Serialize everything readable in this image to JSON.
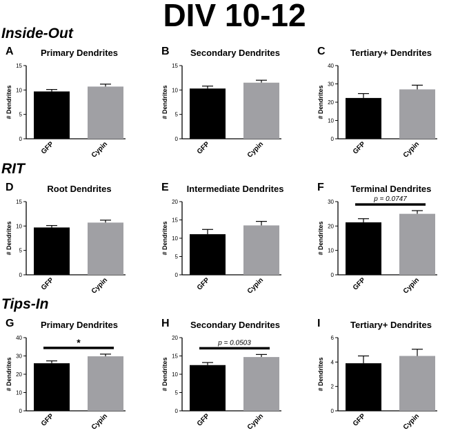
{
  "title": "DIV 10-12",
  "sections": [
    "Inside-Out",
    "RIT",
    "Tips-In"
  ],
  "colors": {
    "gfp": "#000000",
    "cypin": "#a0a0a4",
    "axis": "#000000"
  },
  "chart_data": [
    {
      "letter": "A",
      "type": "bar",
      "title": "Primary Dendrites",
      "ylabel": "# Dendrites",
      "categories": [
        "GFP",
        "Cypin"
      ],
      "values": [
        9.7,
        10.7
      ],
      "errors": [
        0.4,
        0.5
      ],
      "ylim": [
        0,
        15
      ],
      "yticks": [
        0,
        5,
        10,
        15
      ]
    },
    {
      "letter": "B",
      "type": "bar",
      "title": "Secondary Dendrites",
      "ylabel": "# Dendrites",
      "categories": [
        "GFP",
        "Cypin"
      ],
      "values": [
        10.3,
        11.5
      ],
      "errors": [
        0.5,
        0.5
      ],
      "ylim": [
        0,
        15
      ],
      "yticks": [
        0,
        5,
        10,
        15
      ]
    },
    {
      "letter": "C",
      "type": "bar",
      "title": "Tertiary+ Dendrites",
      "ylabel": "# Dendrites",
      "categories": [
        "GFP",
        "Cypin"
      ],
      "values": [
        22.3,
        27.0
      ],
      "errors": [
        2.4,
        2.3
      ],
      "ylim": [
        0,
        40
      ],
      "yticks": [
        0,
        10,
        20,
        30,
        40
      ]
    },
    {
      "letter": "D",
      "type": "bar",
      "title": "Root Dendrites",
      "ylabel": "# Dendrites",
      "categories": [
        "GFP",
        "Cypin"
      ],
      "values": [
        9.7,
        10.7
      ],
      "errors": [
        0.4,
        0.5
      ],
      "ylim": [
        0,
        15
      ],
      "yticks": [
        0,
        5,
        10,
        15
      ]
    },
    {
      "letter": "E",
      "type": "bar",
      "title": "Intermediate Dendrites",
      "ylabel": "# Dendrites",
      "categories": [
        "GFP",
        "Cypin"
      ],
      "values": [
        11.1,
        13.5
      ],
      "errors": [
        1.3,
        1.1
      ],
      "ylim": [
        0,
        20
      ],
      "yticks": [
        0,
        5,
        10,
        15,
        20
      ]
    },
    {
      "letter": "F",
      "type": "bar",
      "title": "Terminal Dendrites",
      "ylabel": "# Dendrites",
      "categories": [
        "GFP",
        "Cypin"
      ],
      "values": [
        21.5,
        25.0
      ],
      "errors": [
        1.5,
        1.3
      ],
      "ylim": [
        0,
        30
      ],
      "yticks": [
        0,
        10,
        20,
        30
      ],
      "annotation": "p = 0.0747"
    },
    {
      "letter": "G",
      "type": "bar",
      "title": "Primary Dendrites",
      "ylabel": "# Dendrites",
      "categories": [
        "GFP",
        "Cypin"
      ],
      "values": [
        26.0,
        29.8
      ],
      "errors": [
        1.3,
        1.2
      ],
      "ylim": [
        0,
        40
      ],
      "yticks": [
        0,
        10,
        20,
        30,
        40
      ],
      "annotation": "*"
    },
    {
      "letter": "H",
      "type": "bar",
      "title": "Secondary Dendrites",
      "ylabel": "# Dendrites",
      "categories": [
        "GFP",
        "Cypin"
      ],
      "values": [
        12.5,
        14.7
      ],
      "errors": [
        0.7,
        0.7
      ],
      "ylim": [
        0,
        20
      ],
      "yticks": [
        0,
        5,
        10,
        15,
        20
      ],
      "annotation": "p = 0.0503"
    },
    {
      "letter": "I",
      "type": "bar",
      "title": "Tertiary+ Dendrites",
      "ylabel": "# Dendrites",
      "categories": [
        "GFP",
        "Cypin"
      ],
      "values": [
        3.9,
        4.5
      ],
      "errors": [
        0.6,
        0.55
      ],
      "ylim": [
        0,
        6
      ],
      "yticks": [
        0,
        2,
        4,
        6
      ]
    }
  ]
}
